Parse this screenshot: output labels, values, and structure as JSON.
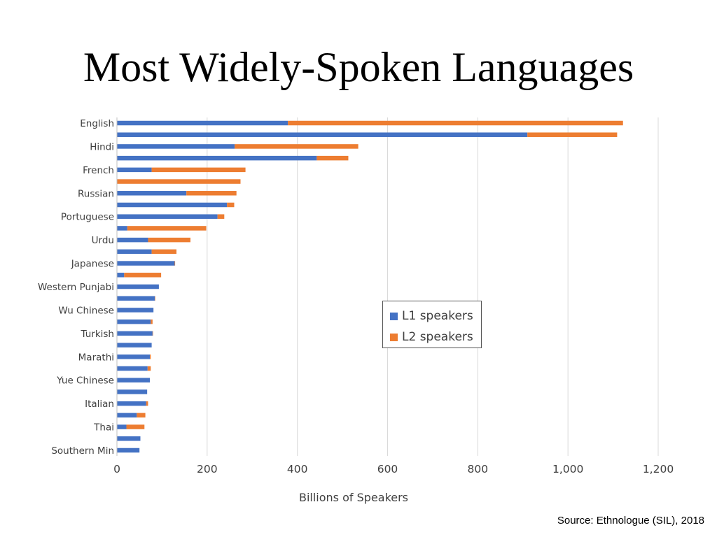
{
  "slide": {
    "title": "Most Widely-Spoken Languages",
    "source_note": "Source: Ethnologue (SIL), 2018"
  },
  "chart_data": {
    "type": "bar",
    "orientation": "horizontal",
    "stacked": true,
    "title": "",
    "xlabel": "Billions of Speakers",
    "ylabel": "",
    "xlim": [
      0,
      1200
    ],
    "x_ticks": [
      0,
      200,
      400,
      600,
      800,
      1000,
      1200
    ],
    "x_tick_labels": [
      "0",
      "200",
      "400",
      "600",
      "800",
      "1,000",
      "1,200"
    ],
    "grid": "vertical",
    "legend_position": "center-right",
    "categories": [
      "English",
      "",
      "Hindi",
      "",
      "French",
      "",
      "Russian",
      "",
      "Portuguese",
      "",
      "Urdu",
      "",
      "Japanese",
      "",
      "Western Punjabi",
      "",
      "Wu Chinese",
      "",
      "Turkish",
      "",
      "Marathi",
      "",
      "Yue Chinese",
      "",
      "Italian",
      "",
      "Thai",
      "",
      "Southern Min"
    ],
    "series": [
      {
        "name": "L1 speakers",
        "color": "#4472c4",
        "values": [
          379,
          910,
          261,
          443,
          77,
          0,
          154,
          244,
          223,
          23,
          69,
          77,
          128,
          16,
          93,
          84,
          81,
          75,
          79,
          77,
          73,
          68,
          73,
          67,
          65,
          44,
          21,
          52,
          50
        ]
      },
      {
        "name": "L2 speakers",
        "color": "#ed7d31",
        "values": [
          743,
          199,
          274,
          70,
          208,
          274,
          111,
          16,
          15,
          175,
          94,
          55,
          1,
          82,
          0,
          1,
          0,
          4,
          1,
          0,
          2,
          7,
          0,
          0,
          4,
          19,
          40,
          0,
          0
        ]
      }
    ]
  }
}
